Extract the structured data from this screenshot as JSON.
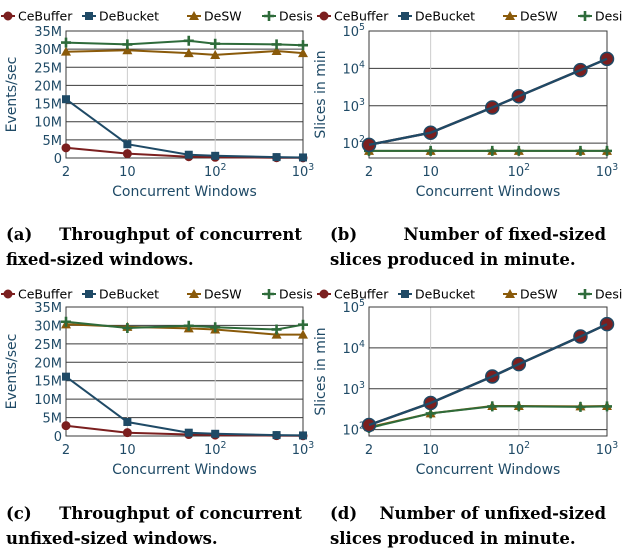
{
  "colors": {
    "CeBuffer": "#7b1f1f",
    "DeBucket": "#1f4a66",
    "DeSW": "#8a5a0a",
    "Desis": "#2e6b3a",
    "grid": "#4d4d4d"
  },
  "captions": [
    {
      "label": "(a)",
      "lines": [
        "Throughput of concurrent",
        "fixed-sized windows."
      ]
    },
    {
      "label": "(b)",
      "lines": [
        "Number of fixed-sized",
        "slices produced in minute."
      ]
    },
    {
      "label": "(c)",
      "lines": [
        "Throughput of concurrent",
        "unfixed-sized windows."
      ]
    },
    {
      "label": "(d)",
      "lines": [
        "Number of unfixed-sized",
        "slices produced in minute."
      ]
    }
  ],
  "chart_data": [
    {
      "type": "line",
      "panel": "a",
      "xscale": "log",
      "x": [
        2,
        10,
        50,
        100,
        500,
        1000
      ],
      "xtick_labels": [
        "2",
        "10",
        "10^2",
        "10^3"
      ],
      "xtick_values": [
        2,
        10,
        100,
        1000
      ],
      "xlabel": "Concurrent Windows",
      "ylabel": "Events/sec",
      "ylim": [
        0,
        35000000
      ],
      "ytick_values": [
        0,
        5000000,
        10000000,
        15000000,
        20000000,
        25000000,
        30000000,
        35000000
      ],
      "ytick_labels": [
        "0",
        "5M",
        "10M",
        "15M",
        "20M",
        "25M",
        "30M",
        "35M"
      ],
      "grid": true,
      "legend": "top",
      "series": [
        {
          "name": "CeBuffer",
          "values": [
            2800000,
            1200000,
            350000,
            200000,
            80000,
            50000
          ]
        },
        {
          "name": "DeBucket",
          "values": [
            16200000,
            3800000,
            900000,
            600000,
            250000,
            150000
          ]
        },
        {
          "name": "DeSW",
          "values": [
            29300000,
            29700000,
            28900000,
            28400000,
            29500000,
            28900000
          ]
        },
        {
          "name": "Desis",
          "values": [
            31800000,
            31300000,
            32300000,
            31500000,
            31300000,
            31100000
          ]
        }
      ]
    },
    {
      "type": "line",
      "panel": "b",
      "xscale": "log",
      "yscale": "log",
      "x": [
        2,
        10,
        50,
        100,
        500,
        1000
      ],
      "xtick_labels": [
        "2",
        "10",
        "10^2",
        "10^3"
      ],
      "xtick_values": [
        2,
        10,
        100,
        1000
      ],
      "xlabel": "Concurrent Windows",
      "ylabel": "Slices in min",
      "ylim": [
        40,
        100000
      ],
      "ytick_values": [
        100,
        1000,
        10000,
        100000
      ],
      "ytick_labels": [
        "10^2",
        "10^3",
        "10^4",
        "10^5"
      ],
      "grid": true,
      "legend": "top",
      "series": [
        {
          "name": "CeBuffer",
          "values": [
            90,
            190,
            900,
            1800,
            9000,
            18000
          ]
        },
        {
          "name": "DeBucket",
          "values": [
            90,
            190,
            900,
            1800,
            9000,
            18000
          ]
        },
        {
          "name": "DeSW",
          "values": [
            62,
            62,
            62,
            62,
            62,
            62
          ]
        },
        {
          "name": "Desis",
          "values": [
            62,
            62,
            62,
            62,
            62,
            62
          ]
        }
      ]
    },
    {
      "type": "line",
      "panel": "c",
      "xscale": "log",
      "x": [
        2,
        10,
        50,
        100,
        500,
        1000
      ],
      "xtick_labels": [
        "2",
        "10",
        "10^2",
        "10^3"
      ],
      "xtick_values": [
        2,
        10,
        100,
        1000
      ],
      "xlabel": "Concurrent Windows",
      "ylabel": "Events/sec",
      "ylim": [
        0,
        35000000
      ],
      "ytick_values": [
        0,
        5000000,
        10000000,
        15000000,
        20000000,
        25000000,
        30000000,
        35000000
      ],
      "ytick_labels": [
        "0",
        "5M",
        "10M",
        "15M",
        "20M",
        "25M",
        "30M",
        "35M"
      ],
      "grid": true,
      "legend": "top",
      "series": [
        {
          "name": "CeBuffer",
          "values": [
            2800000,
            900000,
            400000,
            250000,
            100000,
            60000
          ]
        },
        {
          "name": "DeBucket",
          "values": [
            16100000,
            3800000,
            900000,
            600000,
            250000,
            150000
          ]
        },
        {
          "name": "DeSW",
          "values": [
            30300000,
            29600000,
            29200000,
            28900000,
            27500000,
            27500000
          ]
        },
        {
          "name": "Desis",
          "values": [
            31000000,
            29300000,
            29900000,
            29500000,
            28900000,
            30200000
          ]
        }
      ]
    },
    {
      "type": "line",
      "panel": "d",
      "xscale": "log",
      "yscale": "log",
      "x": [
        2,
        10,
        50,
        100,
        500,
        1000
      ],
      "xtick_labels": [
        "2",
        "10",
        "10^2",
        "10^3"
      ],
      "xtick_values": [
        2,
        10,
        100,
        1000
      ],
      "xlabel": "Concurrent Windows",
      "ylabel": "Slices in min",
      "ylim": [
        70,
        100000
      ],
      "ytick_values": [
        100,
        1000,
        10000,
        100000
      ],
      "ytick_labels": [
        "10^2",
        "10^3",
        "10^4",
        "10^5"
      ],
      "grid": true,
      "legend": "top",
      "series": [
        {
          "name": "CeBuffer",
          "values": [
            130,
            450,
            2000,
            4000,
            19000,
            38000
          ]
        },
        {
          "name": "DeBucket",
          "values": [
            130,
            450,
            2000,
            4000,
            19000,
            38000
          ]
        },
        {
          "name": "DeSW",
          "values": [
            115,
            250,
            380,
            380,
            370,
            380
          ]
        },
        {
          "name": "Desis",
          "values": [
            110,
            250,
            370,
            370,
            360,
            370
          ]
        }
      ]
    }
  ]
}
